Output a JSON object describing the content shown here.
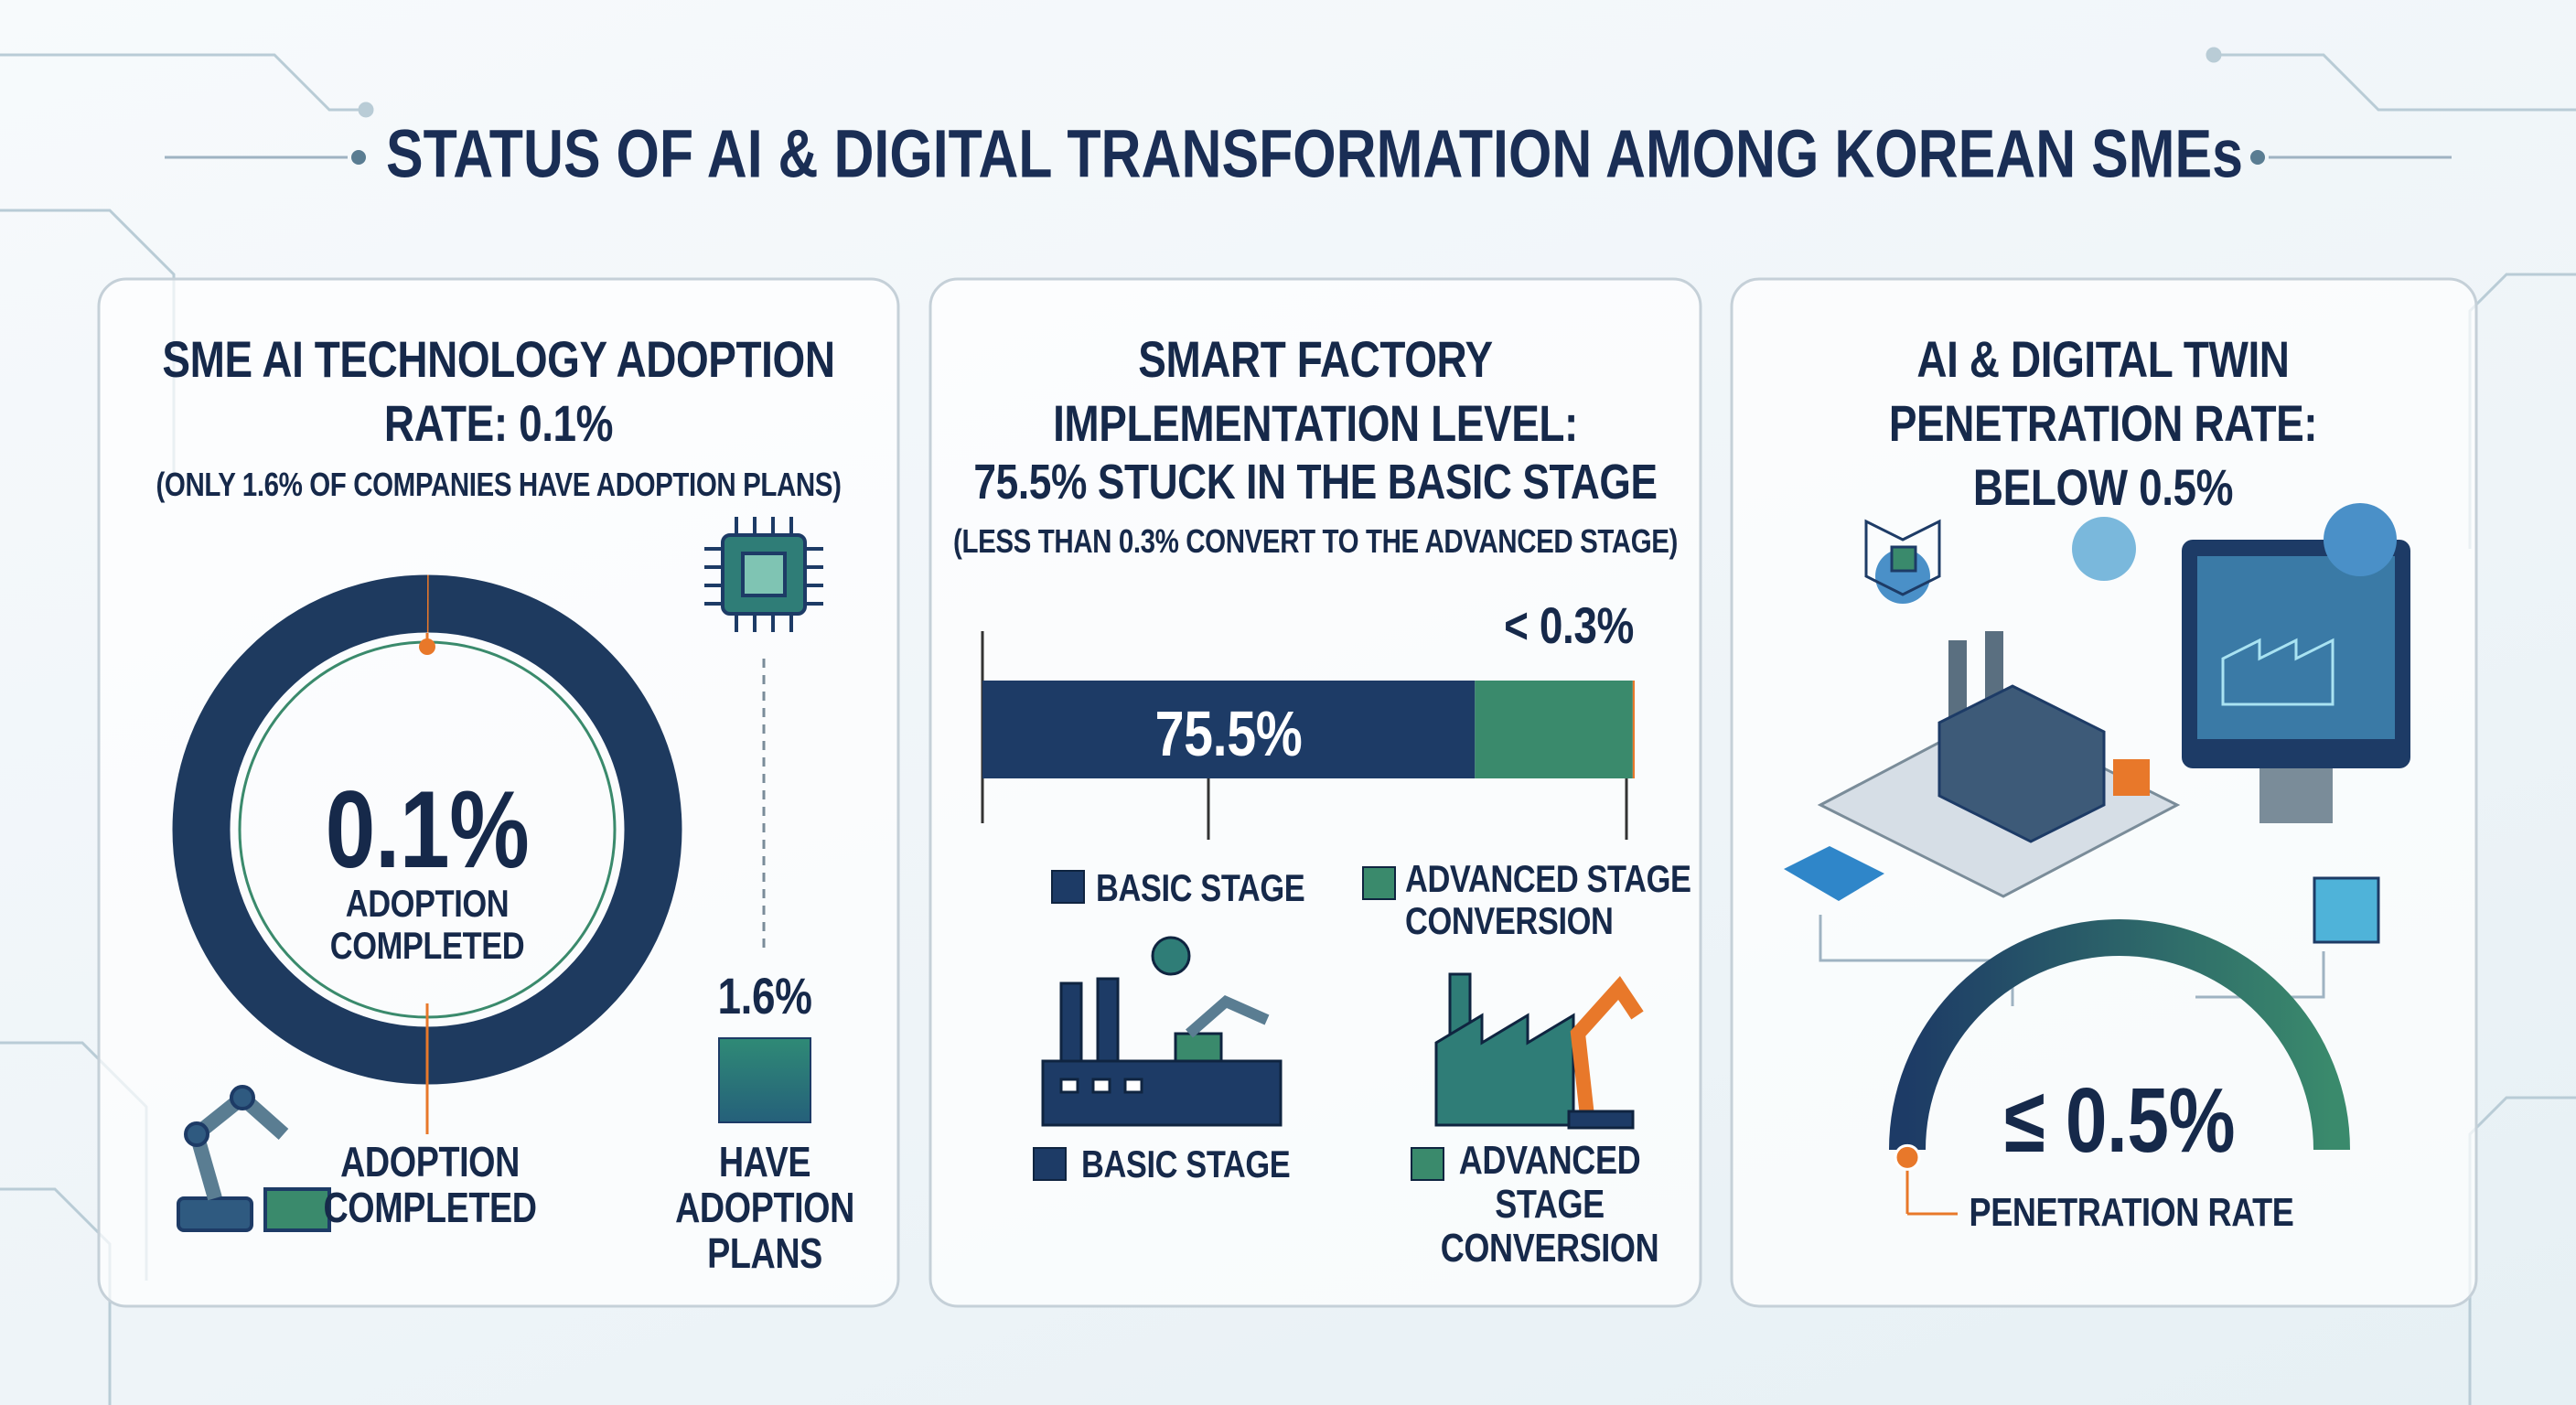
{
  "title": "STATUS OF AI & DIGITAL TRANSFORMATION AMONG KOREAN SMEs",
  "chart_data": [
    {
      "type": "donut",
      "title": "SME AI TECHNOLOGY ADOPTION RATE: 0.1%",
      "subtitle": "(ONLY 1.6% OF COMPANIES HAVE ADOPTION PLANS)",
      "categories": [
        "ADOPTION COMPLETED",
        "HAVE ADOPTION PLANS"
      ],
      "values": [
        0.1,
        1.6
      ],
      "value_labels": [
        "0.1%",
        "1.6%"
      ],
      "colors": [
        "#e8782a",
        "#2f7d77"
      ]
    },
    {
      "type": "stacked_bar",
      "title": "SMART FACTORY IMPLEMENTATION LEVEL:",
      "subtitle": "75.5% STUCK IN THE BASIC STAGE",
      "note": "(LESS THAN 0.3% CONVERT TO THE ADVANCED STAGE)",
      "series": [
        {
          "name": "BASIC STAGE",
          "color": "#1d3b66",
          "values": [
            75.5
          ],
          "value_labels": [
            "75.5%"
          ]
        },
        {
          "name": "ADVANCED STAGE CONVERSION",
          "color": "#3a8a6c",
          "values": [
            24.2
          ]
        },
        {
          "color": "#e8782a",
          "values": [
            0.3
          ],
          "value_labels": [
            "< 0.3%"
          ]
        }
      ]
    },
    {
      "type": "gauge",
      "title": "AI & DIGITAL TWIN PENETRATION RATE: BELOW 0.5%",
      "categories": [
        "PENETRATION RATE"
      ],
      "values": [
        0.5
      ],
      "value_labels": [
        "≤ 0.5%"
      ],
      "color": "#e8782a"
    }
  ]
}
